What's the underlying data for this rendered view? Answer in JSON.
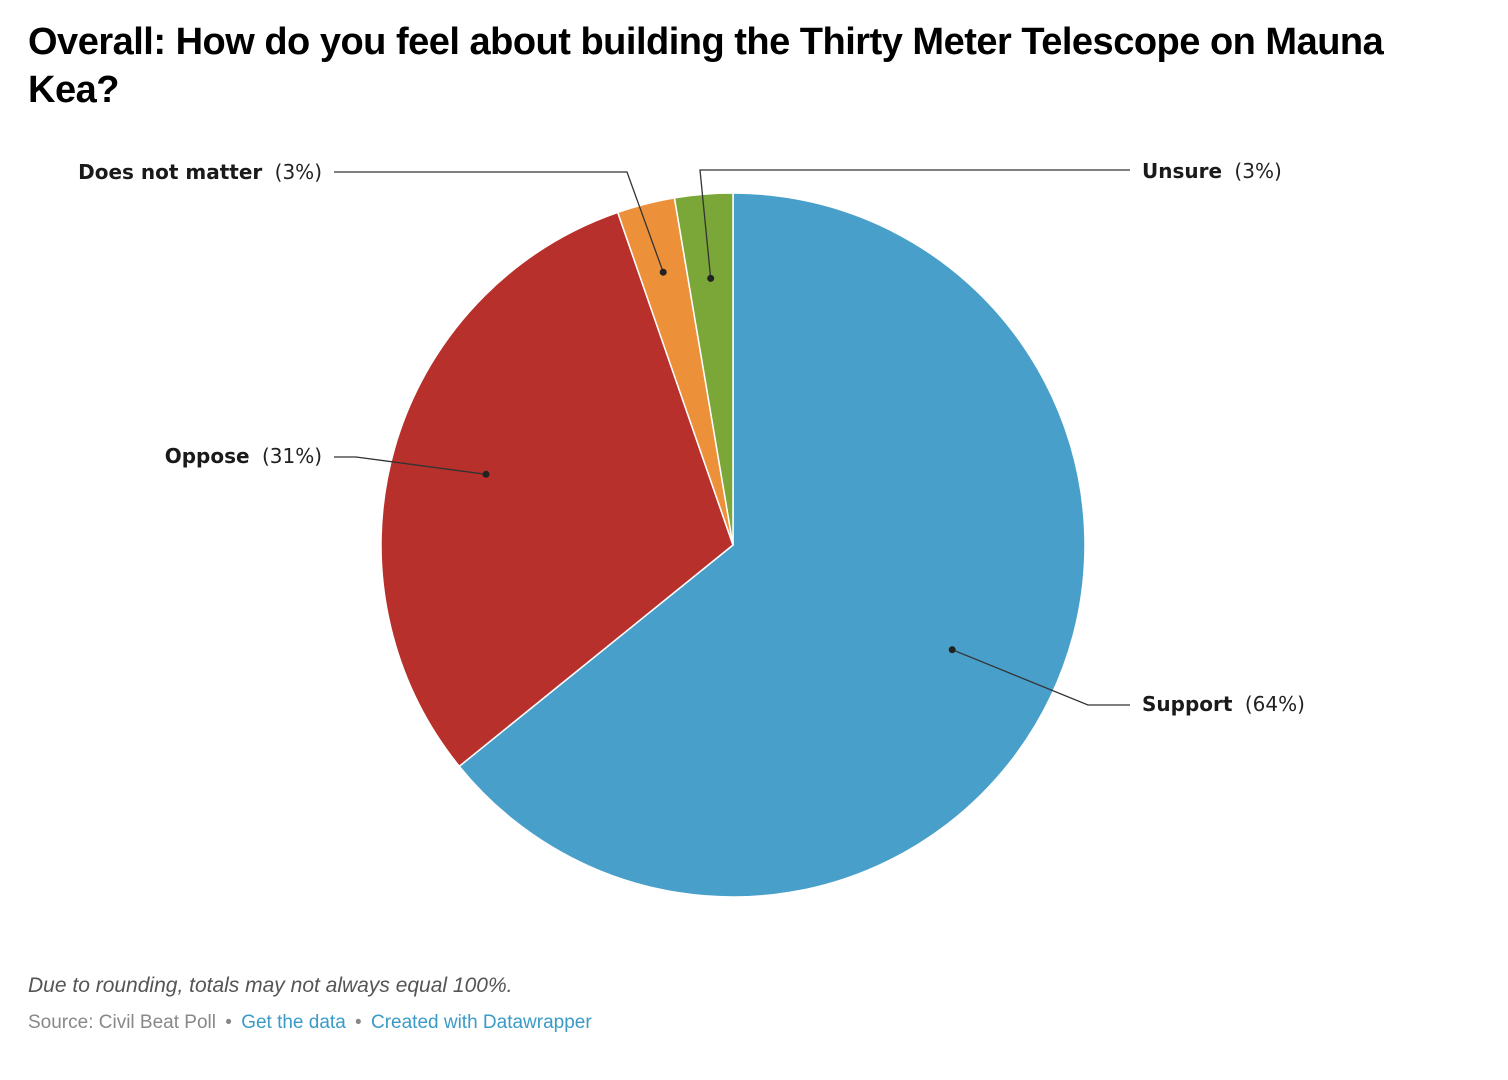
{
  "title": "Overall: How do you feel about building the Thirty Meter Telescope on Mauna Kea?",
  "chart_data": {
    "type": "pie",
    "categories": [
      "Support",
      "Oppose",
      "Does not matter",
      "Unsure"
    ],
    "values": [
      64,
      31,
      3,
      3
    ],
    "value_labels": [
      "(64%)",
      "(31%)",
      "(3%)",
      "(3%)"
    ],
    "slice_shares": [
      0.6418,
      0.3051,
      0.0265,
      0.0266
    ],
    "colors": [
      "#489fc9",
      "#b8302b",
      "#ec913a",
      "#7ba638"
    ],
    "start_angle_deg": 0,
    "direction": "clockwise"
  },
  "footer": {
    "note": "Due to rounding, totals may not always equal 100%.",
    "source": "Source: Civil Beat Poll",
    "separator": "•",
    "get_data": "Get the data",
    "created_with": "Created with Datawrapper"
  }
}
